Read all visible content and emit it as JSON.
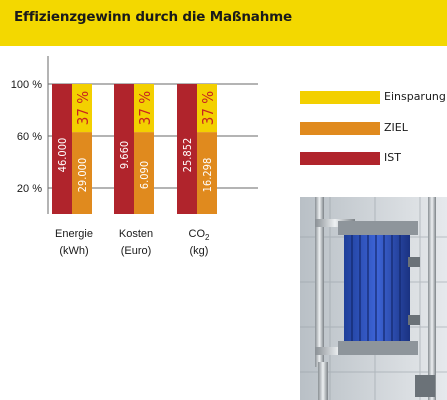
{
  "header": {
    "title": "Effizienzgewinn durch die Maßnahme"
  },
  "colors": {
    "banner": "#f3d800",
    "einsparung": "#f3d000",
    "ziel": "#e08a1e",
    "ist": "#b0242c"
  },
  "legend": [
    {
      "label": "Einsparung",
      "color": "#f3d000"
    },
    {
      "label": "ZIEL",
      "color": "#e08a1e"
    },
    {
      "label": "IST",
      "color": "#b0242c"
    }
  ],
  "chart_data": {
    "type": "bar",
    "categories": [
      {
        "line1": "Energie",
        "line2": "(kWh)"
      },
      {
        "line1": "Kosten",
        "line2": "(Euro)"
      },
      {
        "line1": "CO",
        "sub": "2",
        "line2": "(kg)"
      }
    ],
    "series": [
      {
        "name": "IST",
        "values": [
          46000,
          9660,
          25852
        ],
        "labels": [
          "46.000",
          "9.660",
          "25.852"
        ],
        "percent": [
          100,
          100,
          100
        ]
      },
      {
        "name": "ZIEL",
        "values": [
          29000,
          6090,
          16298
        ],
        "labels": [
          "29.000",
          "6.090",
          "16.298"
        ],
        "percent": [
          63,
          63,
          63
        ]
      },
      {
        "name": "Einsparung",
        "labels": [
          "37 %",
          "37 %",
          "37 %"
        ],
        "percent": [
          37,
          37,
          37
        ]
      }
    ],
    "yticks": [
      20,
      60,
      100
    ],
    "ytick_labels": [
      "20 %",
      "60 %",
      "100 %"
    ],
    "ylim": [
      0,
      100
    ]
  },
  "photo": {
    "icon": "plate-heat-exchanger-photo"
  }
}
